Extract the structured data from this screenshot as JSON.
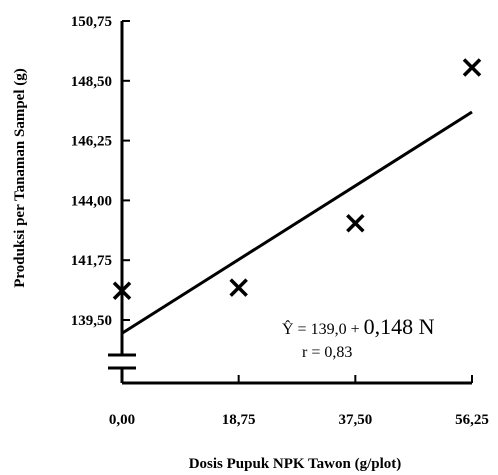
{
  "chart_data": {
    "type": "scatter",
    "x": [
      0,
      18.75,
      37.5,
      56.25
    ],
    "y": [
      140.6,
      140.72,
      143.14,
      149.0
    ],
    "x_ticks": [
      "0,00",
      "18,75",
      "37,50",
      "56,25"
    ],
    "y_ticks": [
      "139,50",
      "141,75",
      "144,00",
      "146,25",
      "148,50",
      "150,75"
    ],
    "y_tick_values": [
      139.5,
      141.75,
      144.0,
      146.25,
      148.5,
      150.75
    ],
    "xlabel": "Dosis Pupuk NPK Tawon (g/plot)",
    "ylabel": "Produksi per Tanaman Sampel (g)",
    "xlim": [
      0,
      56.25
    ],
    "ylim": [
      139.5,
      150.75
    ],
    "axis_break": true,
    "marker": "x",
    "grid": false,
    "regression": {
      "intercept": 139.0,
      "slope": 0.148,
      "equation_prefix": "Ŷ = 139,0 + ",
      "equation_suffix": "0,148 N",
      "r_text": "r = 0,83"
    }
  }
}
